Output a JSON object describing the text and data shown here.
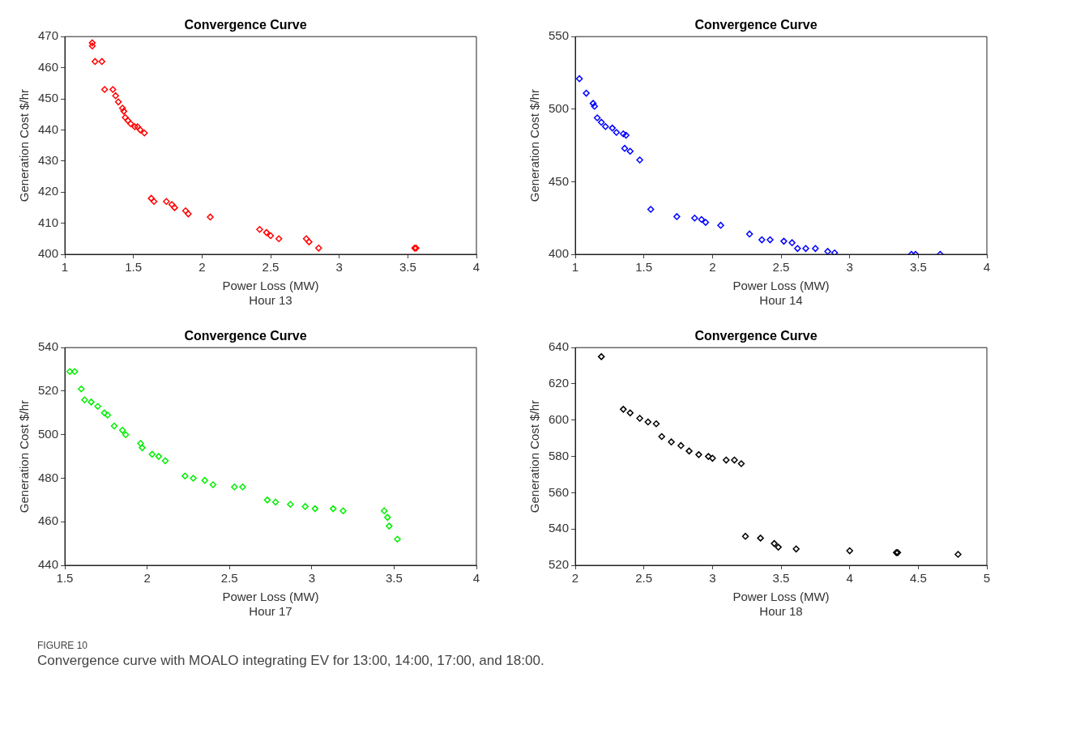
{
  "chart_data": [
    {
      "type": "scatter",
      "title": "Convergence Curve",
      "xlabel": "Power Loss (MW)\nHour 13",
      "ylabel": "Generation Cost $/hr",
      "marker": "diamond",
      "grid": false,
      "legend": false,
      "xlim": [
        1,
        4
      ],
      "xticks": [
        1,
        1.5,
        2,
        2.5,
        3,
        3.5,
        4
      ],
      "ylim": [
        400,
        470
      ],
      "yticks": [
        400,
        410,
        420,
        430,
        440,
        450,
        460,
        470
      ],
      "series": [
        {
          "color": "#ff0000",
          "x": [
            1.2,
            1.2,
            1.22,
            1.27,
            1.29,
            1.35,
            1.37,
            1.39,
            1.42,
            1.43,
            1.44,
            1.46,
            1.48,
            1.51,
            1.53,
            1.55,
            1.58,
            1.63,
            1.65,
            1.74,
            1.78,
            1.8,
            1.88,
            1.9,
            2.06,
            2.42,
            2.47,
            2.5,
            2.56,
            2.76,
            2.78,
            2.85,
            3.55,
            3.56
          ],
          "values": [
            468,
            467,
            462,
            462,
            453,
            453,
            451,
            449,
            447,
            446,
            444,
            443,
            442,
            441,
            441,
            440,
            439,
            418,
            417,
            417,
            416,
            415,
            414,
            413,
            412,
            408,
            407,
            406,
            405,
            405,
            404,
            402,
            402,
            402
          ]
        }
      ]
    },
    {
      "type": "scatter",
      "title": "Convergence Curve",
      "xlabel": "Power Loss (MW)\nHour 14",
      "ylabel": "Generation Cost $/hr",
      "marker": "diamond",
      "grid": false,
      "legend": false,
      "xlim": [
        1,
        4
      ],
      "xticks": [
        1,
        1.5,
        2,
        2.5,
        3,
        3.5,
        4
      ],
      "ylim": [
        400,
        550
      ],
      "yticks": [
        400,
        450,
        500,
        550
      ],
      "series": [
        {
          "color": "#0000ff",
          "x": [
            1.03,
            1.08,
            1.13,
            1.14,
            1.16,
            1.19,
            1.22,
            1.27,
            1.3,
            1.35,
            1.37,
            1.36,
            1.4,
            1.47,
            1.55,
            1.74,
            1.87,
            1.92,
            1.95,
            2.06,
            2.27,
            2.36,
            2.42,
            2.52,
            2.58,
            2.62,
            2.68,
            2.75,
            2.84,
            2.89,
            3.45,
            3.48,
            3.66
          ],
          "values": [
            521,
            511,
            504,
            502,
            494,
            491,
            488,
            487,
            484,
            483,
            482,
            473,
            471,
            465,
            431,
            426,
            425,
            424,
            422,
            420,
            414,
            410,
            410,
            409,
            408,
            404,
            404,
            404,
            402,
            401,
            400,
            400,
            400
          ]
        }
      ]
    },
    {
      "type": "scatter",
      "title": "Convergence Curve",
      "xlabel": "Power Loss (MW)\nHour 17",
      "ylabel": "Generation Cost $/hr",
      "marker": "diamond",
      "grid": false,
      "legend": false,
      "xlim": [
        1.5,
        4
      ],
      "xticks": [
        1.5,
        2,
        2.5,
        3,
        3.5,
        4
      ],
      "ylim": [
        440,
        540
      ],
      "yticks": [
        440,
        460,
        480,
        500,
        520,
        540
      ],
      "series": [
        {
          "color": "#00ee00",
          "x": [
            1.53,
            1.56,
            1.6,
            1.62,
            1.66,
            1.7,
            1.74,
            1.76,
            1.8,
            1.85,
            1.87,
            1.96,
            1.97,
            2.03,
            2.07,
            2.11,
            2.23,
            2.28,
            2.35,
            2.4,
            2.53,
            2.58,
            2.73,
            2.78,
            2.87,
            2.96,
            3.02,
            3.13,
            3.19,
            3.44,
            3.46,
            3.47,
            3.52
          ],
          "values": [
            529,
            529,
            521,
            516,
            515,
            513,
            510,
            509,
            504,
            502,
            500,
            496,
            494,
            491,
            490,
            488,
            481,
            480,
            479,
            477,
            476,
            476,
            470,
            469,
            468,
            467,
            466,
            466,
            465,
            465,
            462,
            458,
            452
          ]
        }
      ]
    },
    {
      "type": "scatter",
      "title": "Convergence Curve",
      "xlabel": "Power Loss (MW)\nHour 18",
      "ylabel": "Generation Cost $/hr",
      "marker": "diamond",
      "grid": false,
      "legend": false,
      "xlim": [
        2,
        5
      ],
      "xticks": [
        2,
        2.5,
        3,
        3.5,
        4,
        4.5,
        5
      ],
      "ylim": [
        520,
        640
      ],
      "yticks": [
        520,
        540,
        560,
        580,
        600,
        620,
        640
      ],
      "series": [
        {
          "color": "#000000",
          "x": [
            2.19,
            2.35,
            2.4,
            2.47,
            2.53,
            2.59,
            2.63,
            2.7,
            2.77,
            2.83,
            2.9,
            2.97,
            3.0,
            3.1,
            3.16,
            3.21,
            3.24,
            3.35,
            3.45,
            3.48,
            3.61,
            4.0,
            4.34,
            4.35,
            4.79
          ],
          "values": [
            635,
            606,
            604,
            601,
            599,
            598,
            591,
            588,
            586,
            583,
            581,
            580,
            579,
            578,
            578,
            576,
            536,
            535,
            532,
            530,
            529,
            528,
            527,
            527,
            526
          ]
        }
      ]
    },
    {
      "type": "other",
      "annotations": [
        "FIGURE 10",
        "Convergence curve with MOALO integrating EV for 13:00, 14:00, 17:00, and 18:00."
      ]
    }
  ]
}
